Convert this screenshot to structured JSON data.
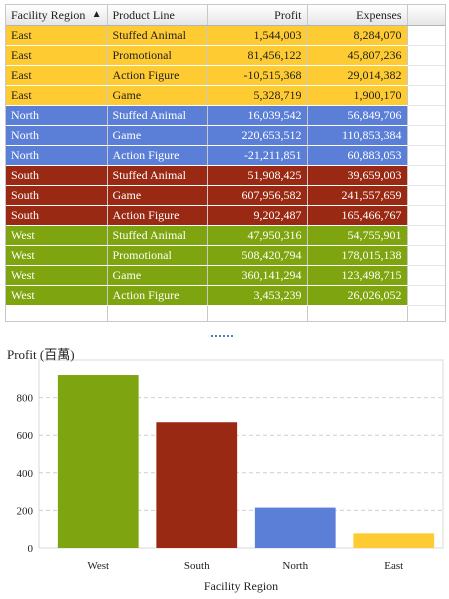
{
  "table": {
    "columns": [
      "Facility Region",
      "Product Line",
      "Profit",
      "Expenses"
    ],
    "sort_icon": "sort-ascending-icon",
    "rows": [
      {
        "region": "East",
        "product": "Stuffed Animal",
        "profit": "1,544,003",
        "expenses": "8,284,070"
      },
      {
        "region": "East",
        "product": "Promotional",
        "profit": "81,456,122",
        "expenses": "45,807,236"
      },
      {
        "region": "East",
        "product": "Action Figure",
        "profit": "-10,515,368",
        "expenses": "29,014,382"
      },
      {
        "region": "East",
        "product": "Game",
        "profit": "5,328,719",
        "expenses": "1,900,170"
      },
      {
        "region": "North",
        "product": "Stuffed Animal",
        "profit": "16,039,542",
        "expenses": "56,849,706"
      },
      {
        "region": "North",
        "product": "Game",
        "profit": "220,653,512",
        "expenses": "110,853,384"
      },
      {
        "region": "North",
        "product": "Action Figure",
        "profit": "-21,211,851",
        "expenses": "60,883,053"
      },
      {
        "region": "South",
        "product": "Stuffed Animal",
        "profit": "51,908,425",
        "expenses": "39,659,003"
      },
      {
        "region": "South",
        "product": "Game",
        "profit": "607,956,582",
        "expenses": "241,557,659"
      },
      {
        "region": "South",
        "product": "Action Figure",
        "profit": "9,202,487",
        "expenses": "165,466,767"
      },
      {
        "region": "West",
        "product": "Stuffed Animal",
        "profit": "47,950,316",
        "expenses": "54,755,901"
      },
      {
        "region": "West",
        "product": "Promotional",
        "profit": "508,420,794",
        "expenses": "178,015,138"
      },
      {
        "region": "West",
        "product": "Game",
        "profit": "360,141,294",
        "expenses": "123,498,715"
      },
      {
        "region": "West",
        "product": "Action Figure",
        "profit": "3,453,239",
        "expenses": "26,026,052"
      }
    ]
  },
  "colors": {
    "East": "#ffcb33",
    "North": "#5b7fd6",
    "South": "#992913",
    "West": "#7ea510"
  },
  "chart_data": {
    "type": "bar",
    "title": "Profit (百萬)",
    "xlabel": "Facility Region",
    "ylabel": "Profit (百萬)",
    "categories": [
      "West",
      "South",
      "North",
      "East"
    ],
    "values": [
      920,
      669,
      215,
      78
    ],
    "colors": [
      "#7ea510",
      "#992913",
      "#5b7fd6",
      "#ffcb33"
    ],
    "ylim": [
      0,
      1000
    ],
    "yticks": [
      0,
      200,
      400,
      600,
      800
    ],
    "grid": true
  }
}
